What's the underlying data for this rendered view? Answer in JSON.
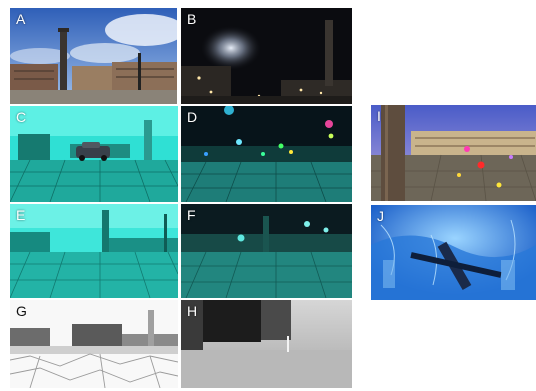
{
  "panels": {
    "a": {
      "label": "A"
    },
    "b": {
      "label": "B"
    },
    "c": {
      "label": "C"
    },
    "d": {
      "label": "D"
    },
    "e": {
      "label": "E"
    },
    "f": {
      "label": "F"
    },
    "g": {
      "label": "G"
    },
    "h": {
      "label": "H"
    },
    "i": {
      "label": "I"
    },
    "j": {
      "label": "J"
    }
  }
}
